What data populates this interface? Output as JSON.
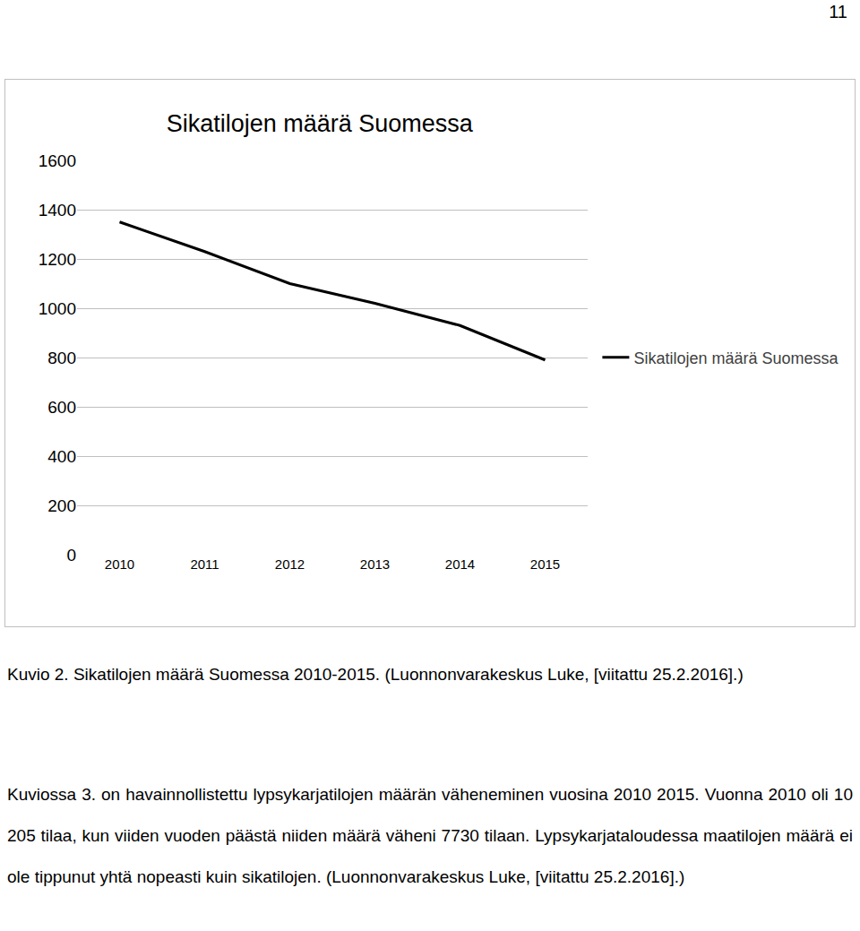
{
  "page_number": "11",
  "chart_data": {
    "type": "line",
    "title": "Sikatilojen määrä Suomessa",
    "categories": [
      "2010",
      "2011",
      "2012",
      "2013",
      "2014",
      "2015"
    ],
    "series": [
      {
        "name": "Sikatilojen määrä Suomessa",
        "color": "#000000",
        "values": [
          1350,
          1230,
          1100,
          1020,
          930,
          790
        ]
      }
    ],
    "ylim": [
      0,
      1600
    ],
    "yticks": [
      0,
      200,
      400,
      600,
      800,
      1000,
      1200,
      1400,
      1600
    ],
    "grid": true,
    "legend": "right"
  },
  "caption": "Kuvio 2. Sikatilojen määrä Suomessa 2010-2015. (Luonnonvarakeskus Luke, [viitattu 25.2.2016].)",
  "paragraph": "Kuviossa 3. on havainnollistettu lypsykarjatilojen määrän väheneminen vuosina 2010 2015. Vuonna 2010 oli 10 205 tilaa, kun viiden vuoden päästä niiden määrä väheni 7730 tilaan. Lypsykarjataloudessa maatilojen määrä ei ole tippunut yhtä nopeasti kuin sikatilojen. (Luonnonvarakeskus Luke, [viitattu 25.2.2016].)"
}
